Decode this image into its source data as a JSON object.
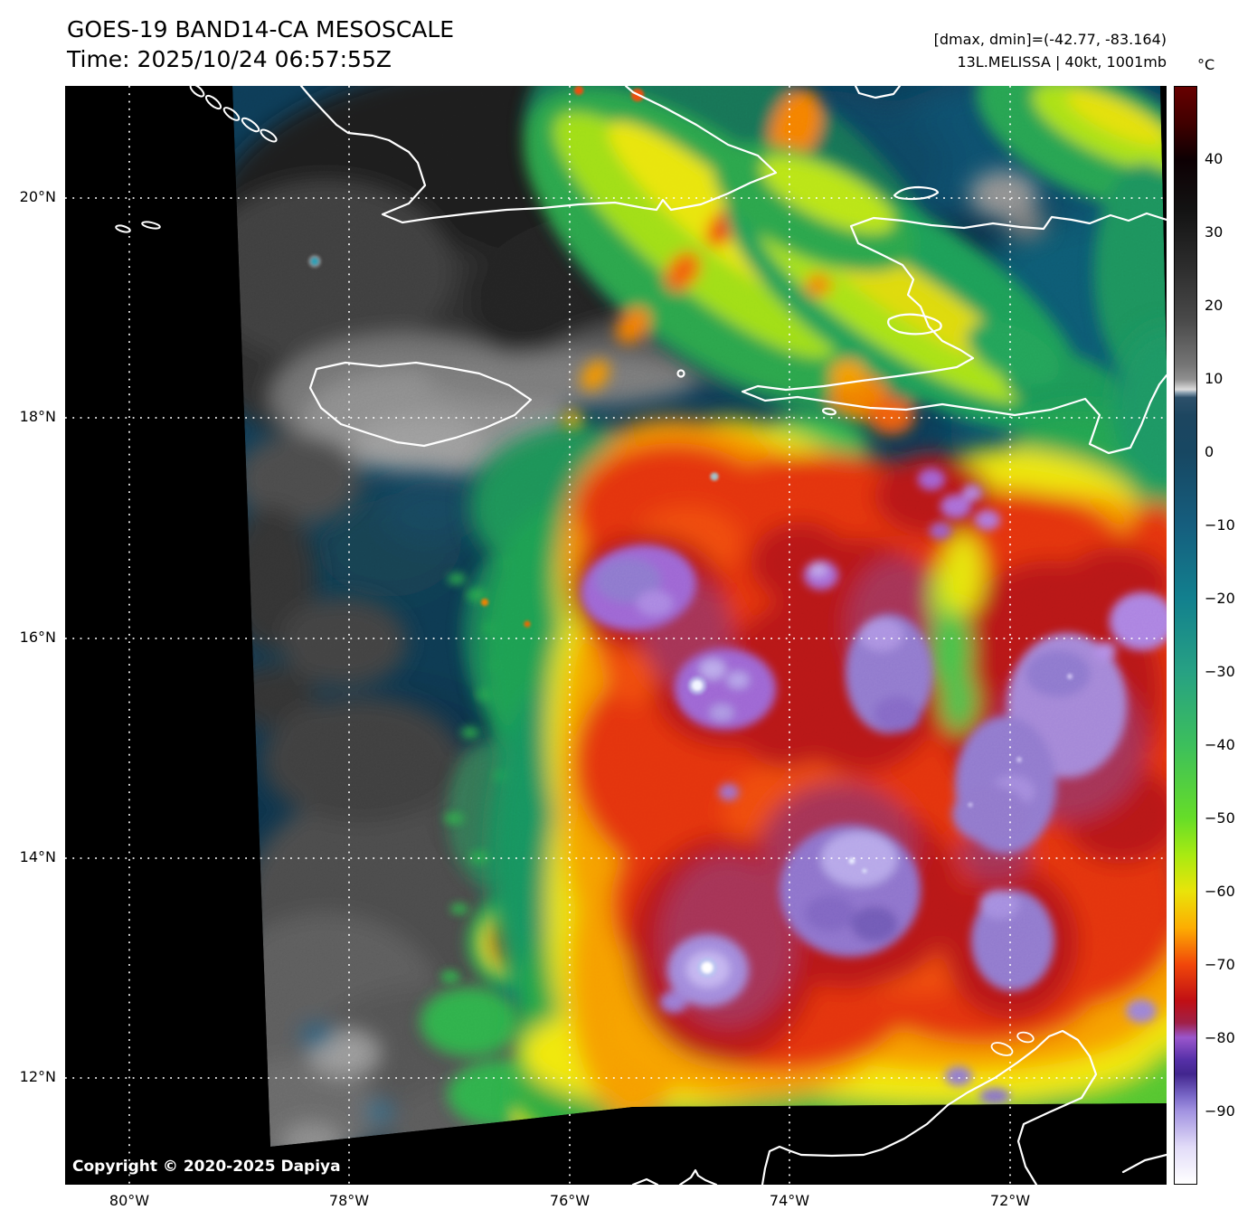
{
  "header": {
    "title_line1": "GOES-19 BAND14-CA MESOSCALE",
    "title_line2": "Time: 2025/10/24 06:57:55Z",
    "info_line1": "[dmax, dmin]=(-42.77, -83.164)",
    "info_line2": "13L.MELISSA | 40kt, 1001mb"
  },
  "colorbar": {
    "unit": "°C",
    "value_range": [
      50,
      -100
    ],
    "tick_values": [
      40,
      30,
      20,
      10,
      0,
      -10,
      -20,
      -30,
      -40,
      -50,
      -60,
      -70,
      -80,
      -90
    ],
    "tick_labels": [
      "40",
      "30",
      "20",
      "10",
      "0",
      "−10",
      "−20",
      "−30",
      "−40",
      "−50",
      "−60",
      "−70",
      "−80",
      "−90"
    ],
    "stops": [
      {
        "v": 50,
        "c": "#670000"
      },
      {
        "v": 45,
        "c": "#400000"
      },
      {
        "v": 40,
        "c": "#0d0003"
      },
      {
        "v": 33,
        "c": "#131313"
      },
      {
        "v": 25,
        "c": "#2e2e2e"
      },
      {
        "v": 18,
        "c": "#4a4a4a"
      },
      {
        "v": 12,
        "c": "#757575"
      },
      {
        "v": 10,
        "c": "#8f8f8f"
      },
      {
        "v": 9,
        "c": "#c6c6c6"
      },
      {
        "v": 8.6,
        "c": "#dcdcdc"
      },
      {
        "v": 8.2,
        "c": "#8fa4b4"
      },
      {
        "v": 7.5,
        "c": "#2c506a"
      },
      {
        "v": 5,
        "c": "#1d4660"
      },
      {
        "v": 0,
        "c": "#174762"
      },
      {
        "v": -10,
        "c": "#155e7e"
      },
      {
        "v": -20,
        "c": "#12808e"
      },
      {
        "v": -30,
        "c": "#27a183"
      },
      {
        "v": -40,
        "c": "#3cbf5c"
      },
      {
        "v": -50,
        "c": "#66dd28"
      },
      {
        "v": -55,
        "c": "#a8ea12"
      },
      {
        "v": -60,
        "c": "#e9e40a"
      },
      {
        "v": -65,
        "c": "#fdad02"
      },
      {
        "v": -70,
        "c": "#f1470a"
      },
      {
        "v": -75,
        "c": "#c00f14"
      },
      {
        "v": -78,
        "c": "#a02048"
      },
      {
        "v": -80,
        "c": "#9a56cc"
      },
      {
        "v": -83,
        "c": "#5630a8"
      },
      {
        "v": -85,
        "c": "#42268e"
      },
      {
        "v": -88,
        "c": "#7a68c8"
      },
      {
        "v": -90,
        "c": "#a192e0"
      },
      {
        "v": -95,
        "c": "#e2dcf8"
      },
      {
        "v": -100,
        "c": "#ffffff"
      }
    ]
  },
  "axes": {
    "lat_labels": [
      "20°N",
      "18°N",
      "16°N",
      "14°N",
      "12°N"
    ],
    "lon_labels": [
      "80°W",
      "78°W",
      "76°W",
      "74°W",
      "72°W"
    ]
  },
  "map_overlay": {
    "copyright": "Copyright © 2020-2025 Dapiya"
  }
}
